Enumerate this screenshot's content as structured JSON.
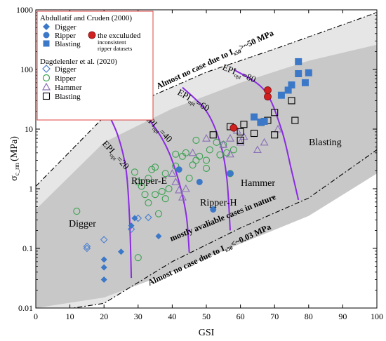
{
  "chart_data": {
    "type": "scatter",
    "xlabel": "GSI",
    "ylabel": "σc_rm (MPa)",
    "ylabel_main": "σ",
    "ylabel_sub": "c_rm",
    "ylabel_unit": "(MPa)",
    "xlim": [
      0,
      100
    ],
    "ylim": [
      0.01,
      1000
    ],
    "ylog": true,
    "x_ticks": [
      "0",
      "10",
      "20",
      "30",
      "40",
      "50",
      "60",
      "70",
      "80",
      "90",
      "100"
    ],
    "y_ticks": [
      "0.01",
      "0.1",
      "1",
      "10",
      "100",
      "1000"
    ],
    "colors": {
      "outer_band": "#e6e6e6",
      "inner_band": "#c8c8c8",
      "filled_blue": "#3c78c8",
      "open_blue": "#4a7fd0",
      "open_green": "#3aa14f",
      "open_purple": "#8a6fb8",
      "epi_curve": "#8b2be2",
      "excluded": "#d02020",
      "legend_border": "#e04040"
    },
    "legend": {
      "group1_title": "Abdullatif and Cruden (2000)",
      "group1_items": [
        "Digger",
        "Ripper",
        "Blasting"
      ],
      "excluded_line1": "the exculuded",
      "excluded_line2": "inconsistent",
      "excluded_line3": "ripper datasets",
      "group2_title": "Dagdelenler et al. (2020)",
      "group2_items": [
        "Digger",
        "Ripper",
        "Hammer",
        "Blasting"
      ]
    },
    "zone_labels": [
      "Digger",
      "Ripper-E",
      "Ripper-H",
      "Hammer",
      "Blasting"
    ],
    "annotations": {
      "upper_pre": "Almost no case due to I",
      "upper_sub": "s50",
      "upper_post": ">~50 MPa",
      "lower_pre": "Almost no case due to I",
      "lower_sub": "s50",
      "lower_post": "<~0.03 MPa",
      "middle": "mostly avaliable cases in nature"
    },
    "epi_labels": [
      {
        "pre": "EPI",
        "sub": "opt",
        "post": "=20"
      },
      {
        "pre": "EPI",
        "sub": "opt",
        "post": "=40"
      },
      {
        "pre": "EPI",
        "sub": "opt",
        "post": "=60"
      },
      {
        "pre": "EPI",
        "sub": "opt",
        "post": "=80"
      }
    ],
    "epi_curves": [
      [
        [
          20,
          25
        ],
        [
          24,
          8
        ],
        [
          26.5,
          2
        ],
        [
          27.5,
          0.3
        ],
        [
          28,
          0.032
        ]
      ],
      [
        [
          30,
          25
        ],
        [
          37,
          7
        ],
        [
          41,
          2
        ],
        [
          44,
          0.4
        ],
        [
          45,
          0.085
        ]
      ],
      [
        [
          43,
          50
        ],
        [
          50,
          20
        ],
        [
          54,
          6
        ],
        [
          56,
          1.5
        ],
        [
          57,
          0.2
        ]
      ],
      [
        [
          58,
          100
        ],
        [
          67,
          45
        ],
        [
          72,
          10
        ],
        [
          75,
          2
        ],
        [
          77,
          0.65
        ]
      ]
    ],
    "band_outer": [
      [
        0,
        1.1
      ],
      [
        20,
        16
      ],
      [
        50,
        90
      ],
      [
        70,
        220
      ],
      [
        100,
        900
      ],
      [
        100,
        4.5
      ],
      [
        80,
        0.7
      ],
      [
        60,
        0.22
      ],
      [
        40,
        0.06
      ],
      [
        20,
        0.012
      ],
      [
        0,
        0.008
      ]
    ],
    "band_inner": [
      [
        0,
        0.45
      ],
      [
        20,
        6
      ],
      [
        40,
        22
      ],
      [
        60,
        60
      ],
      [
        80,
        140
      ],
      [
        100,
        260
      ],
      [
        100,
        1.8
      ],
      [
        80,
        0.35
      ],
      [
        60,
        0.12
      ],
      [
        40,
        0.04
      ],
      [
        20,
        0.015
      ],
      [
        0,
        0.01
      ]
    ],
    "dashdot_upper": [
      [
        0,
        1.1
      ],
      [
        20,
        16
      ],
      [
        50,
        90
      ],
      [
        70,
        220
      ],
      [
        100,
        900
      ]
    ],
    "dashdot_lower": [
      [
        0,
        0.008
      ],
      [
        20,
        0.012
      ],
      [
        40,
        0.06
      ],
      [
        60,
        0.22
      ],
      [
        80,
        0.7
      ],
      [
        100,
        4.5
      ]
    ],
    "series": [
      {
        "name": "Digger",
        "group": "Abdullatif and Cruden (2000)",
        "marker": "diamond-filled",
        "points": [
          [
            20,
            0.03
          ],
          [
            20,
            0.048
          ],
          [
            20,
            0.065
          ],
          [
            25,
            0.088
          ],
          [
            28,
            0.24
          ],
          [
            29,
            0.32
          ],
          [
            36,
            0.16
          ]
        ]
      },
      {
        "name": "Ripper",
        "group": "Abdullatif and Cruden (2000)",
        "marker": "circle-filled",
        "points": [
          [
            42,
            2.1
          ],
          [
            48,
            1.3
          ],
          [
            52,
            0.45
          ],
          [
            57,
            1.8
          ]
        ]
      },
      {
        "name": "Blasting",
        "group": "Abdullatif and Cruden (2000)",
        "marker": "square-filled",
        "points": [
          [
            64,
            16
          ],
          [
            66,
            13
          ],
          [
            67,
            13.5
          ],
          [
            72,
            37
          ],
          [
            74,
            45
          ],
          [
            75,
            55
          ],
          [
            77,
            85
          ],
          [
            77,
            135
          ],
          [
            79,
            60
          ],
          [
            80,
            88
          ]
        ]
      },
      {
        "name": "Excluded",
        "group": "Abdullatif and Cruden (2000)",
        "marker": "circle-red",
        "points": [
          [
            58,
            10.5
          ],
          [
            68,
            35
          ],
          [
            68,
            45
          ]
        ]
      },
      {
        "name": "Digger",
        "group": "Dagdelenler et al. (2020)",
        "marker": "diamond-open",
        "points": [
          [
            15,
            0.1
          ],
          [
            15,
            0.108
          ],
          [
            20,
            0.14
          ],
          [
            28,
            0.21
          ],
          [
            30,
            0.32
          ],
          [
            33,
            0.33
          ]
        ]
      },
      {
        "name": "Ripper",
        "group": "Dagdelenler et al. (2020)",
        "marker": "circle-open",
        "points": [
          [
            12,
            0.42
          ],
          [
            30,
            0.07
          ],
          [
            29,
            1.9
          ],
          [
            30,
            1.3
          ],
          [
            31,
            1.1
          ],
          [
            32,
            0.8
          ],
          [
            33,
            0.58
          ],
          [
            33,
            1.5
          ],
          [
            34,
            2.1
          ],
          [
            35,
            2.3
          ],
          [
            35,
            0.8
          ],
          [
            36,
            0.38
          ],
          [
            37,
            0.9
          ],
          [
            38,
            0.68
          ],
          [
            38,
            1.8
          ],
          [
            39,
            1.0
          ],
          [
            41,
            3.8
          ],
          [
            41,
            2.4
          ],
          [
            43,
            3.5
          ],
          [
            44,
            4.0
          ],
          [
            45,
            1.5
          ],
          [
            46,
            2.5
          ],
          [
            47,
            6.5
          ],
          [
            47,
            3.0
          ],
          [
            48,
            3.5
          ],
          [
            50,
            2.2
          ],
          [
            50,
            3.0
          ],
          [
            51,
            4.5
          ],
          [
            53,
            6.0
          ],
          [
            54,
            3.7
          ],
          [
            55,
            5.5
          ],
          [
            56,
            4.0
          ],
          [
            57,
            1.8
          ],
          [
            58,
            4.5
          ]
        ]
      },
      {
        "name": "Hammer",
        "group": "Dagdelenler et al. (2020)",
        "marker": "triangle-open",
        "points": [
          [
            40,
            1.8
          ],
          [
            41,
            1.3
          ],
          [
            42,
            0.95
          ],
          [
            43,
            0.72
          ],
          [
            44,
            1.0
          ],
          [
            46,
            4.0
          ],
          [
            50,
            7.0
          ],
          [
            55,
            5.5
          ],
          [
            57,
            7.0
          ],
          [
            57,
            3.8
          ],
          [
            59,
            9.5
          ],
          [
            60,
            6.0
          ],
          [
            61,
            7.5
          ],
          [
            65,
            4.5
          ],
          [
            67,
            6.0
          ],
          [
            71,
            10.0
          ]
        ]
      },
      {
        "name": "Blasting",
        "group": "Dagdelenler et al. (2020)",
        "marker": "square-open",
        "points": [
          [
            52,
            8.0
          ],
          [
            57,
            11.0
          ],
          [
            60,
            6.5
          ],
          [
            60,
            9.0
          ],
          [
            61,
            12.0
          ],
          [
            64,
            8.5
          ],
          [
            66,
            13.0
          ],
          [
            68,
            14.0
          ],
          [
            70,
            19.0
          ],
          [
            70,
            8.0
          ],
          [
            75,
            30.0
          ],
          [
            76,
            14.0
          ]
        ]
      }
    ]
  }
}
